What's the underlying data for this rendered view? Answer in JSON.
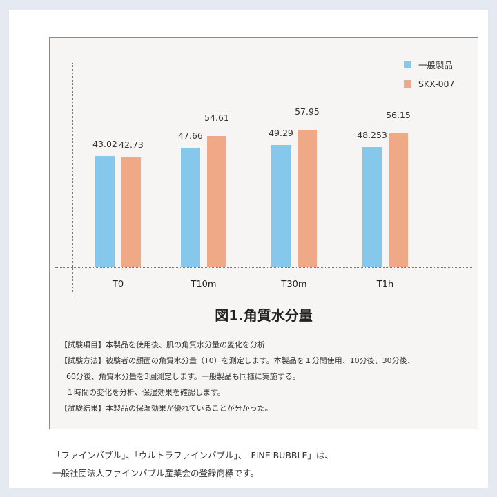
{
  "chart_data": {
    "type": "bar",
    "title": "図1.角質水分量",
    "categories": [
      "T0",
      "T10m",
      "T30m",
      "T1h"
    ],
    "series": [
      {
        "name": "一般製品",
        "color": "#86c8ec",
        "values": [
          43.02,
          47.66,
          49.29,
          48.253
        ],
        "labels": [
          "43.02",
          "47.66",
          "49.29",
          "48.253"
        ]
      },
      {
        "name": "SKX-007",
        "color": "#f0a986",
        "values": [
          42.73,
          54.61,
          57.95,
          56.15
        ],
        "labels": [
          "42.73",
          "54.61",
          "57.95",
          "56.15"
        ]
      }
    ],
    "xlabel": "",
    "ylabel": "",
    "grid": false,
    "legend_position": "top-right"
  },
  "legend": [
    {
      "label": "一般製品",
      "color": "#86c8ec"
    },
    {
      "label": "SKX-007",
      "color": "#f0a986"
    }
  ],
  "figure_title": "図1.角質水分量",
  "notes": [
    "【試験項目】本製品を使用後、肌の角質水分量の変化を分析",
    "【試験方法】被験者の顔面の角質水分量（T0）を測定します。本製品を１分間使用、10分後、30分後、",
    "60分後、角質水分量を3回測定します。一般製品も同様に実施する。",
    "１時間の変化を分析、保湿効果を確認します。",
    "【試験結果】本製品の保湿効果が優れていることが分かった。"
  ],
  "footer": [
    "「ファインバブル」、「ウルトラファインバブル」、「FINE BUBBLE」は、",
    "一般社団法人ファインバブル産業会の登録商標です。"
  ]
}
